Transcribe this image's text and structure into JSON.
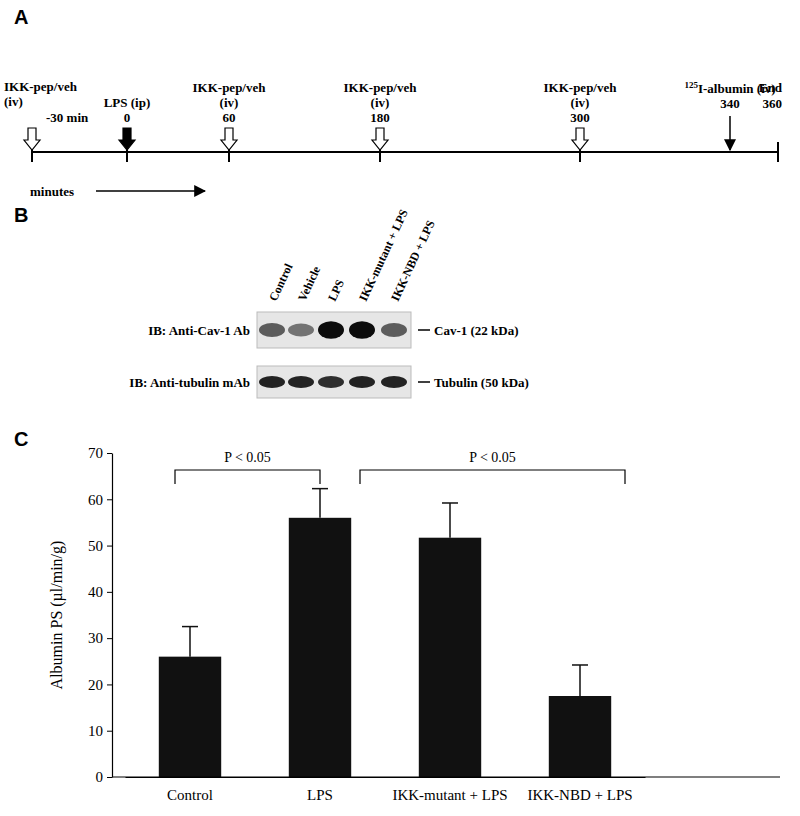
{
  "panel_labels": [
    "A",
    "B",
    "C"
  ],
  "timeline": {
    "events": [
      {
        "lines": [
          "IKK-pep/veh",
          "(iv)"
        ],
        "time": "-30 min",
        "arrow": "open"
      },
      {
        "lines": [
          "LPS (ip)"
        ],
        "time": "0",
        "arrow": "filled"
      },
      {
        "lines": [
          "IKK-pep/veh",
          "(iv)"
        ],
        "time": "60",
        "arrow": "open"
      },
      {
        "lines": [
          "IKK-pep/veh",
          "(iv)"
        ],
        "time": "180",
        "arrow": "open"
      },
      {
        "lines": [
          "IKK-pep/veh",
          "(iv)"
        ],
        "time": "300",
        "arrow": "open"
      },
      {
        "sup": "125",
        "lines": [
          "I-albumin (iv)"
        ],
        "time": "340",
        "arrow": "thin"
      }
    ],
    "end": {
      "label": "End",
      "time": "360"
    },
    "axis_label": "minutes"
  },
  "blot": {
    "lanes": [
      "Control",
      "Vehicle",
      "LPS",
      "IKK-mutant + LPS",
      "IKK-NBD + LPS"
    ],
    "rows": [
      {
        "antibody": "IB: Anti-Cav-1 Ab",
        "band": "Cav-1 (22 kDa)",
        "intensity": [
          0.6,
          0.5,
          0.95,
          0.95,
          0.6
        ]
      },
      {
        "antibody": "IB: Anti-tubulin mAb",
        "band": "Tubulin (50 kDa)",
        "intensity": [
          0.85,
          0.85,
          0.8,
          0.85,
          0.85
        ]
      }
    ]
  },
  "chart_data": {
    "type": "bar",
    "categories": [
      "Control",
      "LPS",
      "IKK-mutant + LPS",
      "IKK-NBD + LPS"
    ],
    "values": [
      26,
      56,
      51.7,
      17.5
    ],
    "errors": [
      6.5,
      6.3,
      7.5,
      6.7
    ],
    "color": "#111111",
    "y_label": "Albumin PS (µl/min/g)",
    "ylim": [
      0,
      70
    ],
    "yticks": [
      0,
      10,
      20,
      30,
      40,
      50,
      60,
      70
    ],
    "grid": false,
    "annotations": [
      {
        "text": "P < 0.05",
        "from": 0,
        "to": 1
      },
      {
        "text": "P < 0.05",
        "from": 1,
        "to": 3
      }
    ]
  }
}
